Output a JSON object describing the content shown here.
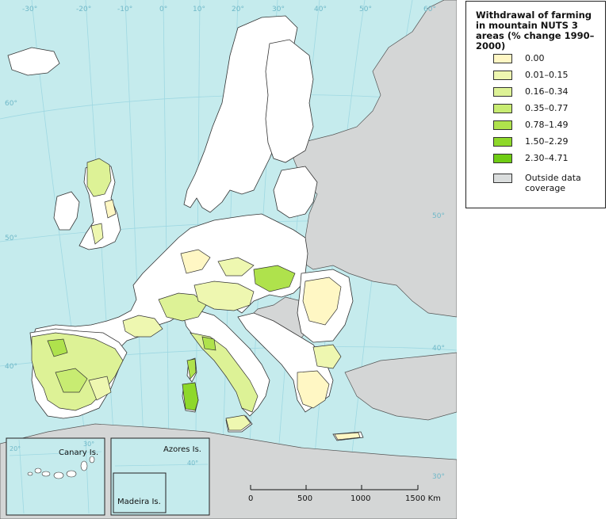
{
  "legend": {
    "title": "Withdrawal of farming in mountain NUTS 3 areas (% change 1990–2000)",
    "items": [
      {
        "label": "0.00",
        "color": "#fff7c4"
      },
      {
        "label": "0.01–0.15",
        "color": "#eef7b0"
      },
      {
        "label": "0.16–0.34",
        "color": "#ddf296"
      },
      {
        "label": "0.35–0.77",
        "color": "#c8ec72"
      },
      {
        "label": "0.78–1.49",
        "color": "#afe24c"
      },
      {
        "label": "1.50–2.29",
        "color": "#8ed82a"
      },
      {
        "label": "2.30–4.71",
        "color": "#6fcc14"
      },
      {
        "label": "Outside data coverage",
        "color": "#dadddd"
      }
    ]
  },
  "graticule": {
    "longitudes": [
      "-30°",
      "-20°",
      "-10°",
      "0°",
      "10°",
      "20°",
      "30°",
      "40°",
      "50°",
      "60°"
    ],
    "latitudes_left": [
      "60°",
      "50°",
      "40°"
    ],
    "latitudes_right": [
      "50°",
      "40°",
      "30°"
    ]
  },
  "insets": {
    "canary": "Canary Is.",
    "azores": "Azores Is.",
    "madeira": "Madeira Is.",
    "canary_lon1": "20°",
    "canary_lon2": "30°",
    "azores_lat": "40°"
  },
  "scalebar": {
    "ticks": [
      "0",
      "500",
      "1000",
      "1500 Km"
    ]
  },
  "colors": {
    "sea": "#c5ebed",
    "land_in": "#ffffff",
    "land_out": "#d4d6d6",
    "border": "#333333",
    "graticule": "#8fd1dc"
  }
}
